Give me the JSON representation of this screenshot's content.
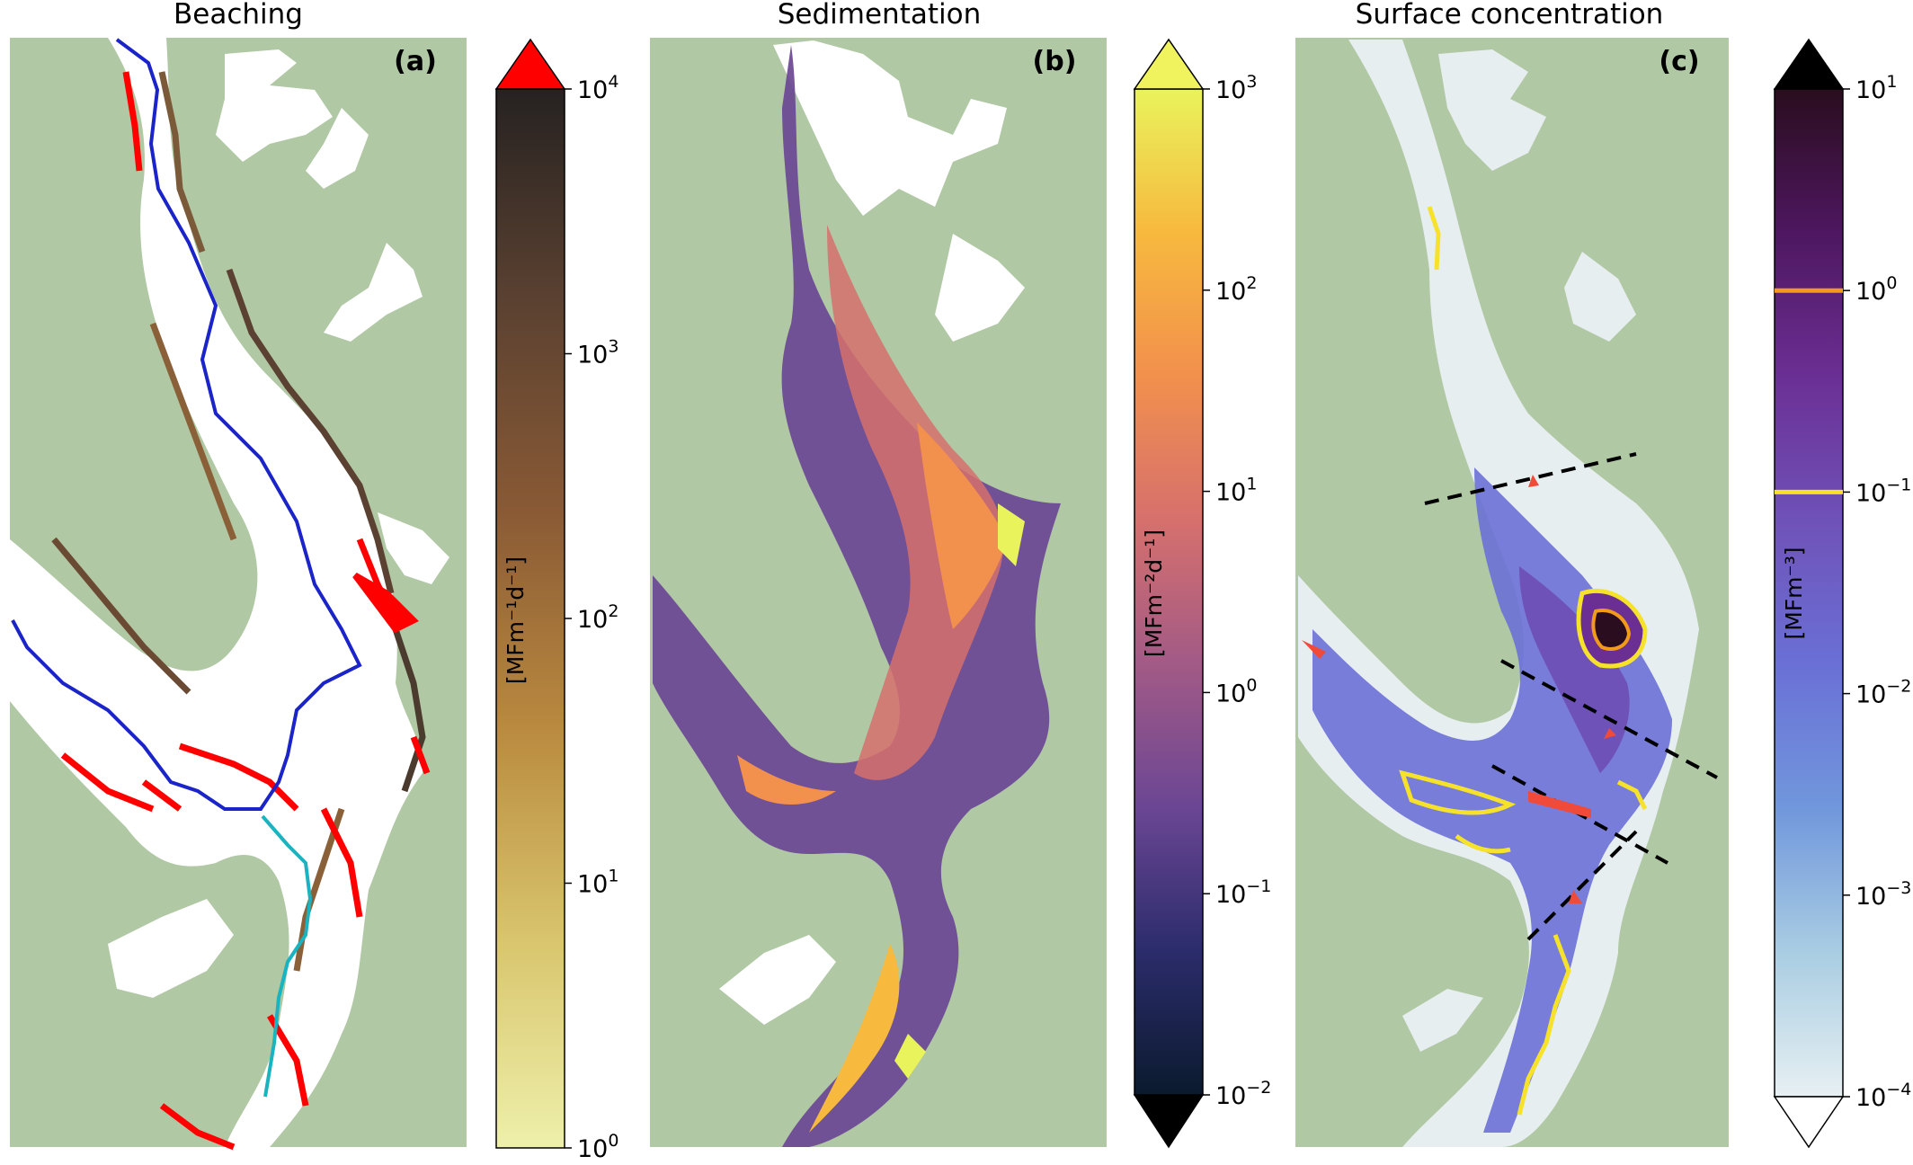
{
  "chart_data": [
    {
      "type": "heatmap",
      "panel": "(a)",
      "title": "Beaching",
      "colorbar": {
        "label": "[MFm⁻¹d⁻¹]",
        "scale": "log",
        "range": [
          1,
          10000
        ],
        "ticks": [
          {
            "base": "10",
            "exp": "0",
            "value": 1
          },
          {
            "base": "10",
            "exp": "1",
            "value": 10
          },
          {
            "base": "10",
            "exp": "2",
            "value": 100
          },
          {
            "base": "10",
            "exp": "3",
            "value": 1000
          },
          {
            "base": "10",
            "exp": "4",
            "value": 10000
          }
        ],
        "colormap": [
          "#eef0ab",
          "#d8c46c",
          "#b9893f",
          "#8a5a35",
          "#5b4131",
          "#262221"
        ],
        "extend_max_color": "#ff0000"
      },
      "lines": [
        {
          "color": "#1a24c8"
        },
        {
          "color": "#1a24c8"
        },
        {
          "color": "#1ab4c0"
        }
      ]
    },
    {
      "type": "heatmap",
      "panel": "(b)",
      "title": "Sedimentation",
      "colorbar": {
        "label": "[MFm⁻²d⁻¹]",
        "scale": "log",
        "range": [
          0.01,
          1000
        ],
        "ticks": [
          {
            "base": "10",
            "exp": "−2",
            "value": 0.01
          },
          {
            "base": "10",
            "exp": "−1",
            "value": 0.1
          },
          {
            "base": "10",
            "exp": "0",
            "value": 1
          },
          {
            "base": "10",
            "exp": "1",
            "value": 10
          },
          {
            "base": "10",
            "exp": "2",
            "value": 100
          },
          {
            "base": "10",
            "exp": "3",
            "value": 1000
          }
        ],
        "colormap": [
          "#0b1a2e",
          "#2b2c6b",
          "#6b4694",
          "#a25a86",
          "#d6706d",
          "#f2904d",
          "#f7b93e",
          "#e9f35c"
        ],
        "extend_min_color": "#000000",
        "extend_max_color": "#f0f35e"
      }
    },
    {
      "type": "heatmap",
      "panel": "(c)",
      "title": "Surface concentration",
      "colorbar": {
        "label": "[MFm⁻³]",
        "scale": "log",
        "range": [
          0.0001,
          10
        ],
        "ticks": [
          {
            "base": "10",
            "exp": "−4",
            "value": 0.0001
          },
          {
            "base": "10",
            "exp": "−3",
            "value": 0.001
          },
          {
            "base": "10",
            "exp": "−2",
            "value": 0.01
          },
          {
            "base": "10",
            "exp": "−1",
            "value": 0.1
          },
          {
            "base": "10",
            "exp": "0",
            "value": 1
          },
          {
            "base": "10",
            "exp": "1",
            "value": 10
          }
        ],
        "colormap": [
          "#e7f0f3",
          "#a9cde2",
          "#7197dc",
          "#6a70d6",
          "#6f52b8",
          "#6b2f94",
          "#4e1760",
          "#2a0d1e"
        ],
        "extend_min_color": "#ffffff",
        "extend_max_color": "#000000",
        "contours": [
          {
            "value": 0.1,
            "color": "#f6e22a"
          },
          {
            "value": 1,
            "color": "#f29a1a"
          }
        ]
      },
      "transects": "dashed black lines",
      "arrows_color": "#f04a3a"
    }
  ]
}
